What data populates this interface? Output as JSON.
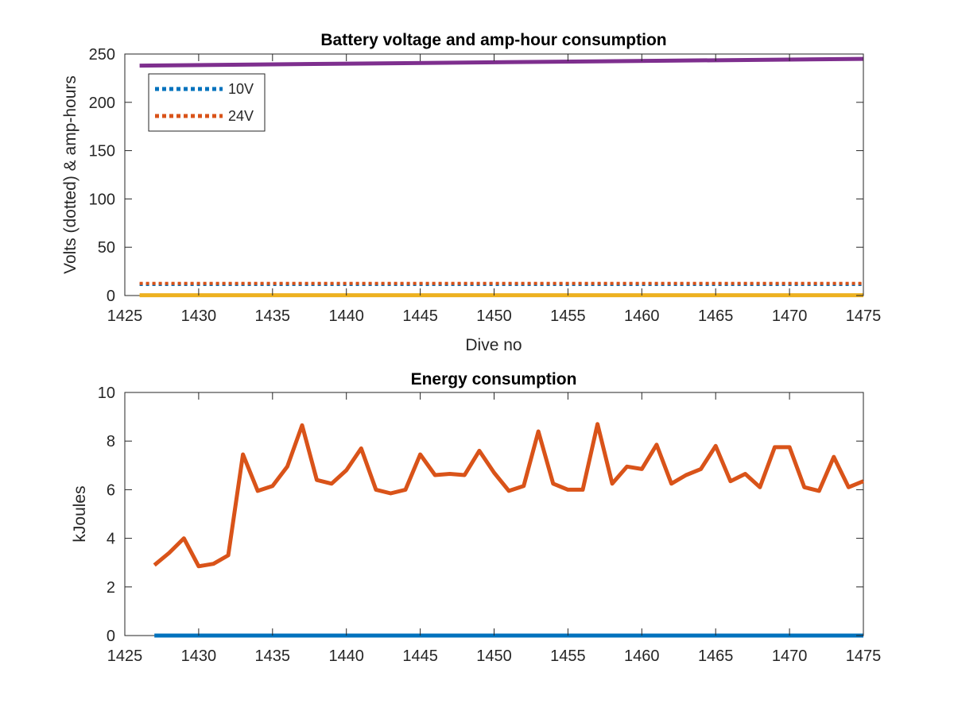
{
  "chart_data": [
    {
      "type": "line",
      "title": "Battery voltage and amp-hour consumption",
      "xlabel": "Dive no",
      "ylabel": "Volts (dotted) & amp-hours",
      "xlim": [
        1425,
        1475
      ],
      "ylim": [
        0,
        250
      ],
      "xticks": [
        1425,
        1430,
        1435,
        1440,
        1445,
        1450,
        1455,
        1460,
        1465,
        1470,
        1475
      ],
      "yticks": [
        0,
        50,
        100,
        150,
        200,
        250
      ],
      "grid": false,
      "legend_position": "top-left",
      "series": [
        {
          "name": "10V",
          "style": "dotted",
          "color": "#0072BD",
          "x": [
            1426,
            1475
          ],
          "y": [
            11.5,
            11.5
          ]
        },
        {
          "name": "24V",
          "style": "dotted",
          "color": "#D95319",
          "x": [
            1426,
            1475
          ],
          "y": [
            12.5,
            12.5
          ]
        },
        {
          "style": "solid",
          "color": "#EDB120",
          "x": [
            1426,
            1475
          ],
          "y": [
            0.3,
            0.3
          ]
        },
        {
          "style": "solid",
          "color": "#7E2F8E",
          "x": [
            1426,
            1475
          ],
          "y": [
            238,
            245
          ]
        }
      ]
    },
    {
      "type": "line",
      "title": "Energy consumption",
      "xlabel": "",
      "ylabel": "kJoules",
      "xlim": [
        1425,
        1475
      ],
      "ylim": [
        0,
        10
      ],
      "xticks": [
        1425,
        1430,
        1435,
        1440,
        1445,
        1450,
        1455,
        1460,
        1465,
        1470,
        1475
      ],
      "yticks": [
        0,
        2,
        4,
        6,
        8,
        10
      ],
      "grid": false,
      "series": [
        {
          "style": "solid",
          "color": "#0072BD",
          "x": [
            1427,
            1475
          ],
          "y": [
            0,
            0
          ]
        },
        {
          "style": "solid",
          "color": "#D95319",
          "x": [
            1427,
            1428,
            1429,
            1430,
            1431,
            1432,
            1433,
            1434,
            1435,
            1436,
            1437,
            1438,
            1439,
            1440,
            1441,
            1442,
            1443,
            1444,
            1445,
            1446,
            1447,
            1448,
            1449,
            1450,
            1451,
            1452,
            1453,
            1454,
            1455,
            1456,
            1457,
            1458,
            1459,
            1460,
            1461,
            1462,
            1463,
            1464,
            1465,
            1466,
            1467,
            1468,
            1469,
            1470,
            1471,
            1472,
            1473,
            1474,
            1475
          ],
          "y": [
            2.9,
            3.4,
            4.0,
            2.85,
            2.95,
            3.3,
            7.45,
            5.95,
            6.15,
            6.95,
            8.65,
            6.4,
            6.25,
            6.8,
            7.7,
            6.0,
            5.85,
            6.0,
            7.45,
            6.6,
            6.65,
            6.6,
            7.6,
            6.7,
            5.95,
            6.15,
            8.4,
            6.25,
            6.0,
            6.0,
            8.7,
            6.25,
            6.95,
            6.85,
            7.85,
            6.25,
            6.6,
            6.85,
            7.8,
            6.35,
            6.65,
            6.1,
            7.75,
            7.75,
            6.1,
            5.95,
            7.35,
            6.1,
            6.35
          ]
        }
      ]
    }
  ]
}
